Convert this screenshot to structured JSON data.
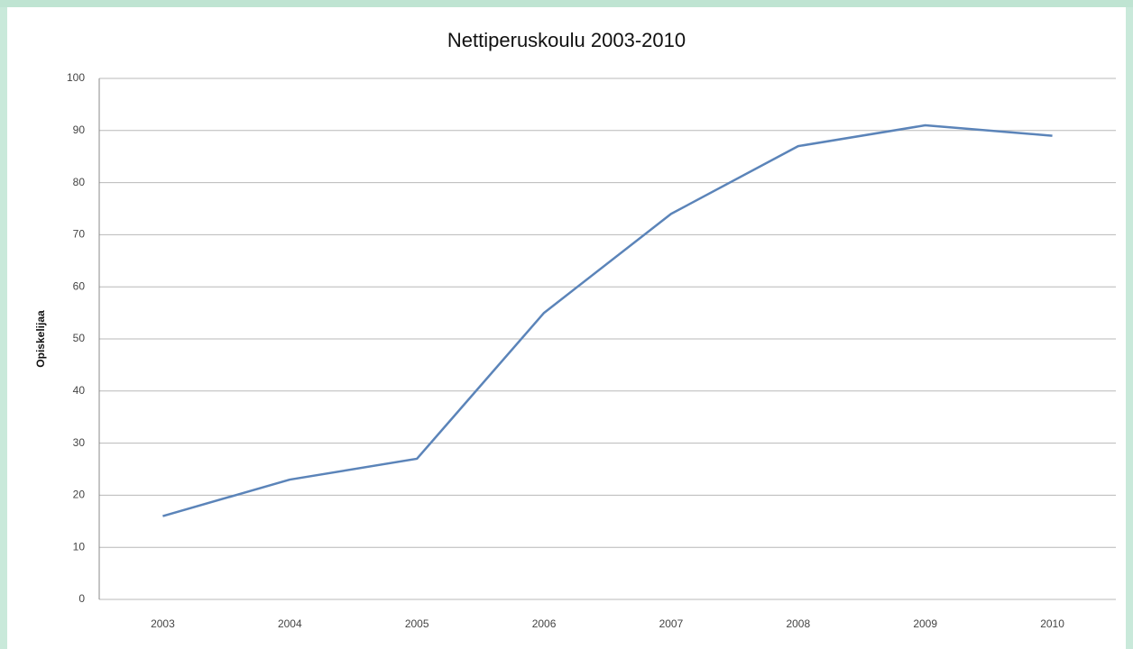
{
  "chart_data": {
    "type": "line",
    "title": "Nettiperuskoulu 2003-2010",
    "y_label": "Opiskelijaa",
    "categories": [
      "2003",
      "2004",
      "2005",
      "2006",
      "2007",
      "2008",
      "2009",
      "2010"
    ],
    "values": [
      16,
      23,
      27,
      55,
      74,
      87,
      91,
      89
    ],
    "color": "#5b84b9",
    "ylim": [
      0,
      100
    ],
    "yticks": [
      0,
      10,
      20,
      30,
      40,
      50,
      60,
      70,
      80,
      90,
      100
    ],
    "grid": true
  }
}
